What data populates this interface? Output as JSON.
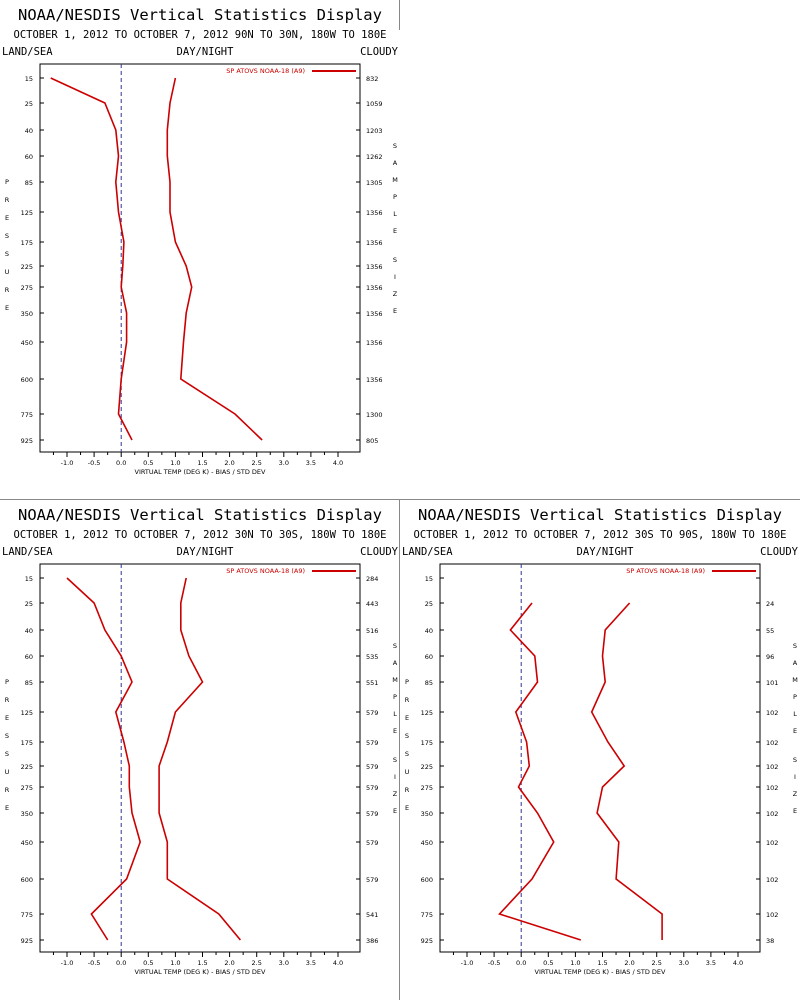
{
  "chart_data": [
    {
      "type": "line",
      "title": "NOAA/NESDIS Vertical Statistics Display",
      "subtitle": "OCTOBER 1, 2012 TO OCTOBER 7, 2012  90N TO 30N, 180W TO 180E",
      "corner_left": "LAND/SEA",
      "corner_center": "DAY/NIGHT",
      "corner_right": "CLOUDY",
      "legend": "SP ATOVS NOAA-18 (A9)",
      "xlabel": "VIRTUAL TEMP (DEG K) - BIAS / STD DEV",
      "ylabel": "PRESSURE",
      "right_label": "SAMPLE SIZE",
      "xlim": [
        -1.5,
        4.0
      ],
      "xticks": [
        "-1.0",
        "-0.5",
        "0.0",
        "0.5",
        "1.0",
        "1.5",
        "2.0",
        "2.5",
        "3.0",
        "3.5",
        "4.0"
      ],
      "pressure_levels": [
        "15",
        "25",
        "40",
        "60",
        "85",
        "125",
        "175",
        "225",
        "275",
        "350",
        "450",
        "600",
        "775",
        "925"
      ],
      "sample_size": [
        "832",
        "1059",
        "1203",
        "1262",
        "1305",
        "1356",
        "1356",
        "1356",
        "1356",
        "1356",
        "1356",
        "1356",
        "1300",
        "805"
      ],
      "series": [
        {
          "name": "bias",
          "values": [
            -1.3,
            -0.3,
            -0.1,
            -0.05,
            -0.1,
            -0.05,
            0.05,
            0.03,
            0.0,
            0.1,
            0.1,
            0.0,
            -0.05,
            0.2
          ]
        },
        {
          "name": "std dev",
          "values": [
            1.0,
            0.9,
            0.85,
            0.85,
            0.9,
            0.9,
            1.0,
            1.2,
            1.3,
            1.2,
            1.15,
            1.1,
            2.1,
            2.6
          ]
        }
      ]
    },
    {
      "type": "line",
      "title": "NOAA/NESDIS Vertical Statistics Display",
      "subtitle": "OCTOBER 1, 2012 TO OCTOBER 7, 2012  30N TO 30S, 180W TO 180E",
      "corner_left": "LAND/SEA",
      "corner_center": "DAY/NIGHT",
      "corner_right": "CLOUDY",
      "legend": "SP ATOVS NOAA-18 (A9)",
      "xlabel": "VIRTUAL TEMP (DEG K) - BIAS / STD DEV",
      "ylabel": "PRESSURE",
      "right_label": "SAMPLE SIZE",
      "xlim": [
        -1.5,
        4.0
      ],
      "xticks": [
        "-1.0",
        "-0.5",
        "0.0",
        "0.5",
        "1.0",
        "1.5",
        "2.0",
        "2.5",
        "3.0",
        "3.5",
        "4.0"
      ],
      "pressure_levels": [
        "15",
        "25",
        "40",
        "60",
        "85",
        "125",
        "175",
        "225",
        "275",
        "350",
        "450",
        "600",
        "775",
        "925"
      ],
      "sample_size": [
        "284",
        "443",
        "516",
        "535",
        "551",
        "579",
        "579",
        "579",
        "579",
        "579",
        "579",
        "579",
        "541",
        "386"
      ],
      "series": [
        {
          "name": "bias",
          "values": [
            -1.0,
            -0.5,
            -0.3,
            0.0,
            0.2,
            -0.1,
            0.05,
            0.15,
            0.15,
            0.2,
            0.35,
            0.1,
            -0.55,
            -0.25
          ]
        },
        {
          "name": "std dev",
          "values": [
            1.2,
            1.1,
            1.1,
            1.25,
            1.5,
            1.0,
            0.85,
            0.7,
            0.7,
            0.7,
            0.85,
            0.85,
            1.8,
            2.2
          ]
        }
      ]
    },
    {
      "type": "line",
      "title": "NOAA/NESDIS Vertical Statistics Display",
      "subtitle": "OCTOBER 1, 2012 TO OCTOBER 7, 2012  30S TO 90S, 180W TO 180E",
      "corner_left": "LAND/SEA",
      "corner_center": "DAY/NIGHT",
      "corner_right": "CLOUDY",
      "legend": "SP ATOVS NOAA-18 (A9)",
      "xlabel": "VIRTUAL TEMP (DEG K) - BIAS / STD DEV",
      "ylabel": "PRESSURE",
      "right_label": "SAMPLE SIZE",
      "xlim": [
        -1.5,
        4.0
      ],
      "xticks": [
        "-1.0",
        "-0.5",
        "0.0",
        "0.5",
        "1.0",
        "1.5",
        "2.0",
        "2.5",
        "3.0",
        "3.5",
        "4.0"
      ],
      "pressure_levels": [
        "15",
        "25",
        "40",
        "60",
        "85",
        "125",
        "175",
        "225",
        "275",
        "350",
        "450",
        "600",
        "775",
        "925"
      ],
      "sample_size": [
        "",
        "24",
        "55",
        "96",
        "101",
        "102",
        "102",
        "102",
        "102",
        "102",
        "102",
        "102",
        "102",
        "38"
      ],
      "series": [
        {
          "name": "bias",
          "values": [
            null,
            0.2,
            -0.2,
            0.25,
            0.3,
            -0.1,
            0.1,
            0.15,
            -0.05,
            0.3,
            0.6,
            0.2,
            -0.4,
            1.1
          ]
        },
        {
          "name": "std dev",
          "values": [
            null,
            2.0,
            1.55,
            1.5,
            1.55,
            1.3,
            1.6,
            1.9,
            1.5,
            1.4,
            1.8,
            1.75,
            2.6,
            2.6
          ]
        }
      ]
    }
  ],
  "colors": {
    "series": "#cc0000",
    "axis": "#000000",
    "zero_line": "#333399"
  }
}
